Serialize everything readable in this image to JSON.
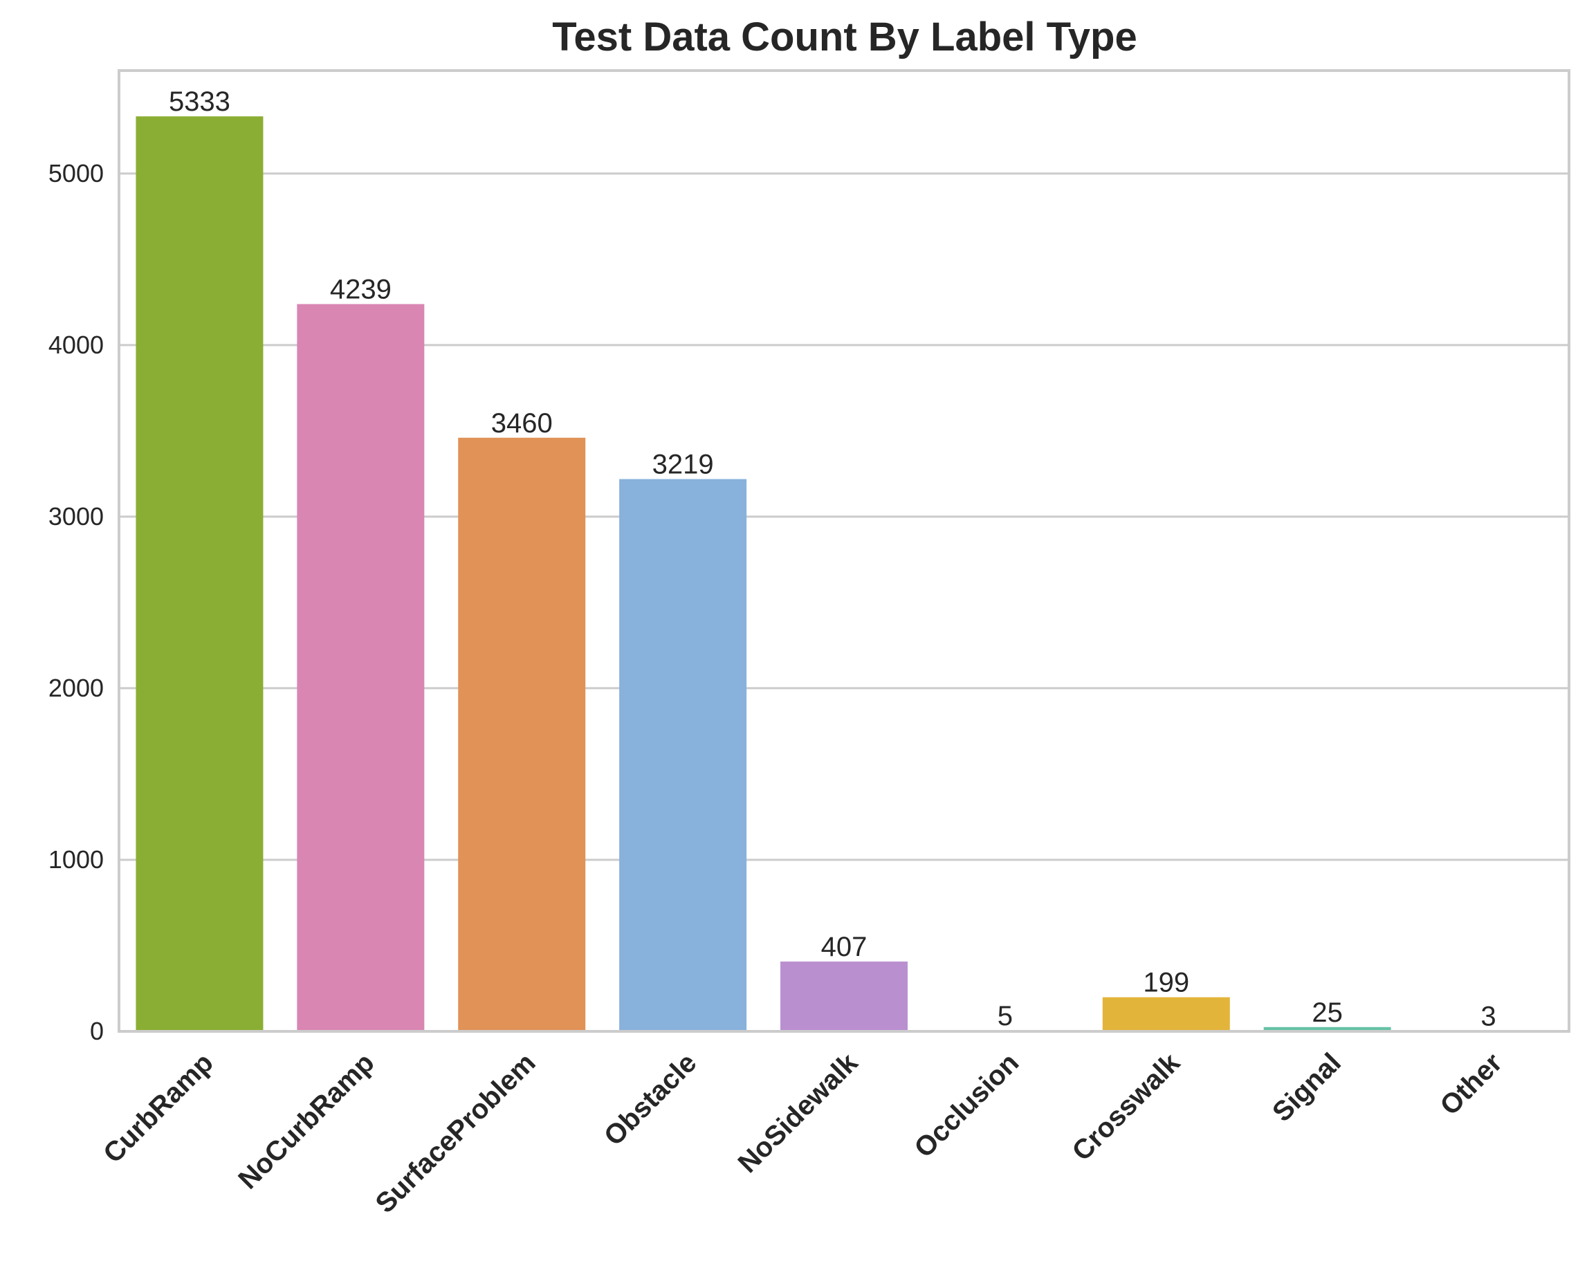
{
  "chart_data": {
    "type": "bar",
    "title": "Test Data Count By Label Type",
    "xlabel": "",
    "ylabel": "",
    "categories": [
      "CurbRamp",
      "NoCurbRamp",
      "SurfaceProblem",
      "Obstacle",
      "NoSidewalk",
      "Occlusion",
      "Crosswalk",
      "Signal",
      "Other"
    ],
    "values": [
      5333,
      4239,
      3460,
      3219,
      407,
      5,
      199,
      25,
      3
    ],
    "colors": [
      "#8aae33",
      "#d986b3",
      "#e09257",
      "#88b1dc",
      "#ba8fd0",
      "#5a9fd0",
      "#e3b43a",
      "#66c2a5",
      "#b3b3b3"
    ],
    "yticks": [
      0,
      1000,
      2000,
      3000,
      4000,
      5000
    ],
    "ylim": [
      0,
      5600
    ],
    "grid": true,
    "data_labels": true,
    "x_tick_rotation_deg": 45
  }
}
